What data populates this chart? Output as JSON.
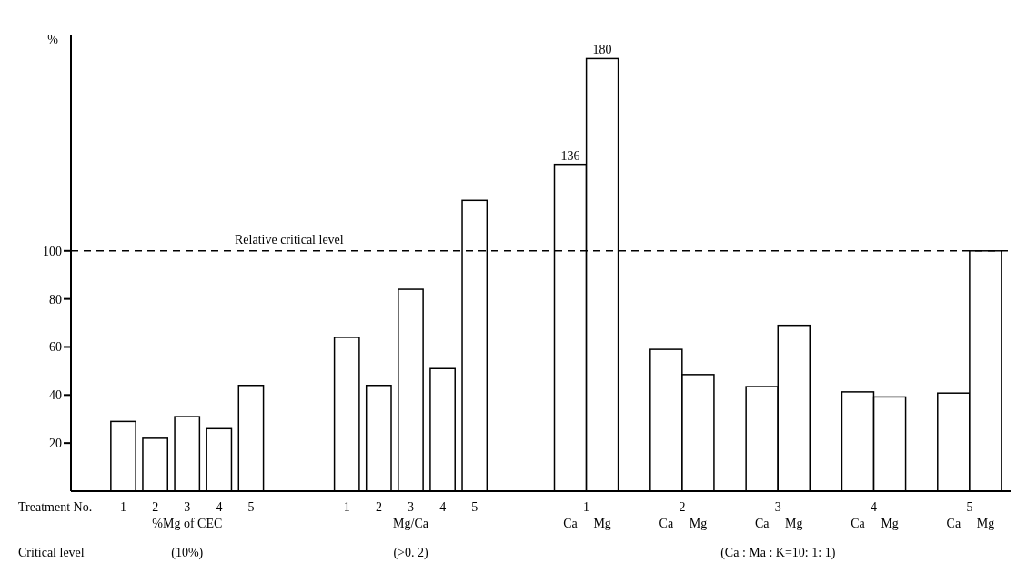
{
  "chart_data": {
    "type": "bar",
    "ylabel": "%",
    "categories": [
      "1",
      "2",
      "3",
      "4",
      "5",
      null,
      null,
      "1",
      "2",
      "3",
      "4",
      "5",
      null,
      null,
      "Ca",
      "Mg",
      null,
      "Ca",
      "Mg",
      null,
      "Ca",
      "Mg",
      null,
      "Ca",
      "Mg",
      null,
      "Ca",
      "Mg"
    ],
    "values": [
      29,
      22,
      31,
      26,
      44,
      null,
      null,
      64,
      44,
      84,
      51,
      121,
      null,
      null,
      136,
      180,
      null,
      59,
      48.5,
      null,
      43.5,
      69,
      null,
      41.3,
      39.2,
      null,
      40.8,
      100
    ],
    "value_labels": [
      null,
      null,
      null,
      null,
      null,
      null,
      null,
      null,
      null,
      null,
      null,
      null,
      null,
      null,
      "136",
      "180",
      null,
      null,
      null,
      null,
      null,
      null,
      null,
      null,
      null,
      null,
      null,
      null
    ],
    "color": "#ffffff",
    "ylim": [
      0,
      190
    ],
    "yticks": [
      20,
      40,
      60,
      80,
      100
    ],
    "ref_lines": [
      {
        "axis": "y",
        "value": 100,
        "label": "Relative critical level",
        "color": "#000000",
        "line_style": "dashed"
      }
    ],
    "annotations": [
      "Treatment No.",
      "%Mg of CEC",
      "Mg/Ca",
      "1",
      "2",
      "3",
      "4",
      "5",
      "Critical level",
      "(10%)",
      "(>0. 2)",
      "(Ca : Ma : K=10: 1: 1)"
    ]
  }
}
